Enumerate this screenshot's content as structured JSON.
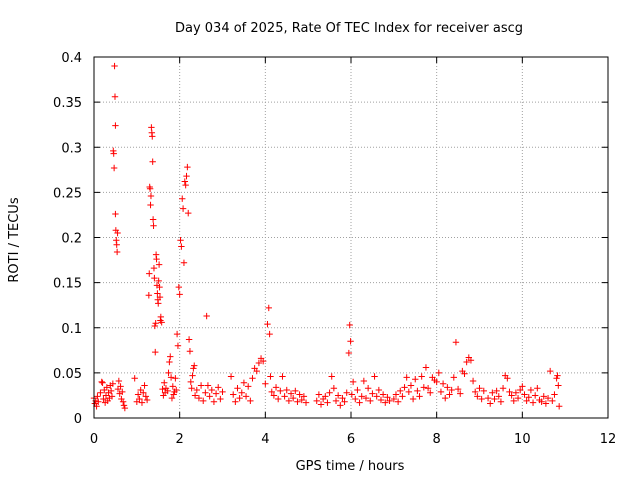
{
  "chart_data": {
    "type": "scatter",
    "title": "Day 034 of 2025, Rate Of TEC Index for receiver ascg",
    "xlabel": "GPS time / hours",
    "ylabel": "ROTI / TECUs",
    "xlim": [
      0,
      12
    ],
    "ylim": [
      0,
      0.4
    ],
    "x_ticks": [
      0,
      2,
      4,
      6,
      8,
      10,
      12
    ],
    "x_tick_labels": [
      "0",
      "2",
      "4",
      "6",
      "8",
      "10",
      "12"
    ],
    "y_ticks": [
      0,
      0.05,
      0.1,
      0.15,
      0.2,
      0.25,
      0.3,
      0.35,
      0.4
    ],
    "y_tick_labels": [
      "0",
      "0.05",
      "0.1",
      "0.15",
      "0.2",
      "0.25",
      "0.3",
      "0.35",
      "0.4"
    ],
    "grid": true,
    "marker": "+",
    "color": "#ff0000",
    "series": [
      {
        "name": "ROTI",
        "points": [
          [
            0.0,
            0.022
          ],
          [
            0.02,
            0.016
          ],
          [
            0.04,
            0.019
          ],
          [
            0.06,
            0.013
          ],
          [
            0.08,
            0.024
          ],
          [
            0.1,
            0.018
          ],
          [
            0.15,
            0.028
          ],
          [
            0.18,
            0.04
          ],
          [
            0.2,
            0.039
          ],
          [
            0.22,
            0.021
          ],
          [
            0.24,
            0.031
          ],
          [
            0.26,
            0.017
          ],
          [
            0.28,
            0.025
          ],
          [
            0.3,
            0.034
          ],
          [
            0.32,
            0.019
          ],
          [
            0.34,
            0.028
          ],
          [
            0.36,
            0.022
          ],
          [
            0.38,
            0.036
          ],
          [
            0.4,
            0.03
          ],
          [
            0.42,
            0.024
          ],
          [
            0.44,
            0.038
          ],
          [
            0.45,
            0.296
          ],
          [
            0.46,
            0.293
          ],
          [
            0.47,
            0.277
          ],
          [
            0.48,
            0.39
          ],
          [
            0.49,
            0.356
          ],
          [
            0.5,
            0.324
          ],
          [
            0.5,
            0.226
          ],
          [
            0.51,
            0.208
          ],
          [
            0.52,
            0.197
          ],
          [
            0.53,
            0.192
          ],
          [
            0.54,
            0.184
          ],
          [
            0.55,
            0.205
          ],
          [
            0.56,
            0.032
          ],
          [
            0.58,
            0.041
          ],
          [
            0.6,
            0.027
          ],
          [
            0.62,
            0.035
          ],
          [
            0.64,
            0.021
          ],
          [
            0.66,
            0.029
          ],
          [
            0.68,
            0.018
          ],
          [
            0.7,
            0.014
          ],
          [
            0.72,
            0.011
          ],
          [
            0.95,
            0.044
          ],
          [
            1.0,
            0.018
          ],
          [
            1.03,
            0.026
          ],
          [
            1.06,
            0.021
          ],
          [
            1.09,
            0.031
          ],
          [
            1.12,
            0.017
          ],
          [
            1.15,
            0.028
          ],
          [
            1.18,
            0.036
          ],
          [
            1.21,
            0.024
          ],
          [
            1.24,
            0.02
          ],
          [
            1.28,
            0.136
          ],
          [
            1.29,
            0.16
          ],
          [
            1.3,
            0.256
          ],
          [
            1.31,
            0.254
          ],
          [
            1.32,
            0.236
          ],
          [
            1.33,
            0.246
          ],
          [
            1.34,
            0.322
          ],
          [
            1.35,
            0.316
          ],
          [
            1.36,
            0.312
          ],
          [
            1.37,
            0.284
          ],
          [
            1.38,
            0.22
          ],
          [
            1.39,
            0.213
          ],
          [
            1.4,
            0.166
          ],
          [
            1.41,
            0.155
          ],
          [
            1.42,
            0.102
          ],
          [
            1.43,
            0.073
          ],
          [
            1.44,
            0.105
          ],
          [
            1.45,
            0.181
          ],
          [
            1.46,
            0.176
          ],
          [
            1.47,
            0.147
          ],
          [
            1.48,
            0.138
          ],
          [
            1.49,
            0.131
          ],
          [
            1.5,
            0.127
          ],
          [
            1.51,
            0.152
          ],
          [
            1.52,
            0.17
          ],
          [
            1.53,
            0.145
          ],
          [
            1.54,
            0.134
          ],
          [
            1.55,
            0.108
          ],
          [
            1.56,
            0.112
          ],
          [
            1.58,
            0.106
          ],
          [
            1.6,
            0.032
          ],
          [
            1.62,
            0.025
          ],
          [
            1.64,
            0.039
          ],
          [
            1.66,
            0.028
          ],
          [
            1.68,
            0.033
          ],
          [
            1.72,
            0.03
          ],
          [
            1.74,
            0.05
          ],
          [
            1.76,
            0.062
          ],
          [
            1.78,
            0.068
          ],
          [
            1.8,
            0.045
          ],
          [
            1.82,
            0.022
          ],
          [
            1.84,
            0.035
          ],
          [
            1.86,
            0.026
          ],
          [
            1.88,
            0.029
          ],
          [
            1.9,
            0.044
          ],
          [
            1.92,
            0.031
          ],
          [
            1.94,
            0.093
          ],
          [
            1.96,
            0.08
          ],
          [
            1.98,
            0.145
          ],
          [
            2.0,
            0.137
          ],
          [
            2.02,
            0.197
          ],
          [
            2.04,
            0.19
          ],
          [
            2.06,
            0.243
          ],
          [
            2.08,
            0.232
          ],
          [
            2.1,
            0.172
          ],
          [
            2.12,
            0.262
          ],
          [
            2.14,
            0.258
          ],
          [
            2.16,
            0.268
          ],
          [
            2.18,
            0.278
          ],
          [
            2.2,
            0.227
          ],
          [
            2.22,
            0.087
          ],
          [
            2.24,
            0.074
          ],
          [
            2.26,
            0.04
          ],
          [
            2.28,
            0.033
          ],
          [
            2.3,
            0.047
          ],
          [
            2.32,
            0.055
          ],
          [
            2.34,
            0.058
          ],
          [
            2.36,
            0.025
          ],
          [
            2.4,
            0.031
          ],
          [
            2.45,
            0.022
          ],
          [
            2.5,
            0.036
          ],
          [
            2.55,
            0.019
          ],
          [
            2.6,
            0.028
          ],
          [
            2.63,
            0.113
          ],
          [
            2.66,
            0.036
          ],
          [
            2.7,
            0.024
          ],
          [
            2.75,
            0.031
          ],
          [
            2.8,
            0.018
          ],
          [
            2.85,
            0.027
          ],
          [
            2.9,
            0.034
          ],
          [
            2.95,
            0.021
          ],
          [
            3.0,
            0.029
          ],
          [
            3.2,
            0.046
          ],
          [
            3.25,
            0.026
          ],
          [
            3.3,
            0.018
          ],
          [
            3.35,
            0.033
          ],
          [
            3.4,
            0.022
          ],
          [
            3.45,
            0.028
          ],
          [
            3.5,
            0.039
          ],
          [
            3.55,
            0.024
          ],
          [
            3.6,
            0.035
          ],
          [
            3.65,
            0.019
          ],
          [
            3.7,
            0.044
          ],
          [
            3.75,
            0.055
          ],
          [
            3.8,
            0.052
          ],
          [
            3.85,
            0.061
          ],
          [
            3.9,
            0.066
          ],
          [
            3.95,
            0.063
          ],
          [
            4.0,
            0.038
          ],
          [
            4.05,
            0.104
          ],
          [
            4.08,
            0.122
          ],
          [
            4.1,
            0.093
          ],
          [
            4.12,
            0.046
          ],
          [
            4.15,
            0.029
          ],
          [
            4.2,
            0.025
          ],
          [
            4.25,
            0.034
          ],
          [
            4.3,
            0.021
          ],
          [
            4.35,
            0.03
          ],
          [
            4.4,
            0.046
          ],
          [
            4.45,
            0.024
          ],
          [
            4.5,
            0.031
          ],
          [
            4.55,
            0.019
          ],
          [
            4.6,
            0.027
          ],
          [
            4.65,
            0.022
          ],
          [
            4.7,
            0.03
          ],
          [
            4.75,
            0.018
          ],
          [
            4.8,
            0.026
          ],
          [
            4.85,
            0.02
          ],
          [
            4.9,
            0.024
          ],
          [
            4.95,
            0.017
          ],
          [
            5.2,
            0.019
          ],
          [
            5.25,
            0.026
          ],
          [
            5.3,
            0.015
          ],
          [
            5.35,
            0.021
          ],
          [
            5.4,
            0.024
          ],
          [
            5.45,
            0.017
          ],
          [
            5.5,
            0.028
          ],
          [
            5.55,
            0.046
          ],
          [
            5.6,
            0.033
          ],
          [
            5.65,
            0.019
          ],
          [
            5.7,
            0.025
          ],
          [
            5.75,
            0.014
          ],
          [
            5.8,
            0.022
          ],
          [
            5.85,
            0.018
          ],
          [
            5.9,
            0.028
          ],
          [
            5.95,
            0.072
          ],
          [
            5.97,
            0.103
          ],
          [
            5.99,
            0.085
          ],
          [
            6.02,
            0.026
          ],
          [
            6.05,
            0.04
          ],
          [
            6.1,
            0.021
          ],
          [
            6.15,
            0.031
          ],
          [
            6.2,
            0.017
          ],
          [
            6.25,
            0.024
          ],
          [
            6.3,
            0.041
          ],
          [
            6.35,
            0.022
          ],
          [
            6.4,
            0.033
          ],
          [
            6.45,
            0.019
          ],
          [
            6.5,
            0.027
          ],
          [
            6.55,
            0.046
          ],
          [
            6.6,
            0.024
          ],
          [
            6.65,
            0.031
          ],
          [
            6.7,
            0.02
          ],
          [
            6.75,
            0.026
          ],
          [
            6.8,
            0.017
          ],
          [
            6.85,
            0.023
          ],
          [
            6.9,
            0.019
          ],
          [
            7.0,
            0.021
          ],
          [
            7.05,
            0.026
          ],
          [
            7.1,
            0.018
          ],
          [
            7.15,
            0.03
          ],
          [
            7.2,
            0.024
          ],
          [
            7.25,
            0.034
          ],
          [
            7.3,
            0.045
          ],
          [
            7.35,
            0.029
          ],
          [
            7.4,
            0.036
          ],
          [
            7.45,
            0.021
          ],
          [
            7.5,
            0.043
          ],
          [
            7.55,
            0.03
          ],
          [
            7.6,
            0.024
          ],
          [
            7.65,
            0.046
          ],
          [
            7.7,
            0.034
          ],
          [
            7.75,
            0.056
          ],
          [
            7.8,
            0.033
          ],
          [
            7.85,
            0.028
          ],
          [
            7.9,
            0.045
          ],
          [
            7.95,
            0.042
          ],
          [
            8.0,
            0.04
          ],
          [
            8.05,
            0.05
          ],
          [
            8.1,
            0.029
          ],
          [
            8.15,
            0.038
          ],
          [
            8.2,
            0.022
          ],
          [
            8.25,
            0.034
          ],
          [
            8.3,
            0.026
          ],
          [
            8.35,
            0.031
          ],
          [
            8.4,
            0.045
          ],
          [
            8.45,
            0.084
          ],
          [
            8.5,
            0.032
          ],
          [
            8.55,
            0.027
          ],
          [
            8.6,
            0.052
          ],
          [
            8.65,
            0.049
          ],
          [
            8.7,
            0.062
          ],
          [
            8.75,
            0.067
          ],
          [
            8.8,
            0.064
          ],
          [
            8.85,
            0.041
          ],
          [
            8.9,
            0.029
          ],
          [
            8.95,
            0.024
          ],
          [
            9.0,
            0.033
          ],
          [
            9.05,
            0.021
          ],
          [
            9.1,
            0.03
          ],
          [
            9.2,
            0.022
          ],
          [
            9.25,
            0.016
          ],
          [
            9.3,
            0.028
          ],
          [
            9.35,
            0.021
          ],
          [
            9.4,
            0.03
          ],
          [
            9.45,
            0.024
          ],
          [
            9.5,
            0.018
          ],
          [
            9.55,
            0.033
          ],
          [
            9.6,
            0.047
          ],
          [
            9.65,
            0.044
          ],
          [
            9.7,
            0.029
          ],
          [
            9.75,
            0.025
          ],
          [
            9.8,
            0.019
          ],
          [
            9.85,
            0.028
          ],
          [
            9.9,
            0.022
          ],
          [
            9.95,
            0.031
          ],
          [
            10.0,
            0.035
          ],
          [
            10.05,
            0.026
          ],
          [
            10.1,
            0.019
          ],
          [
            10.15,
            0.023
          ],
          [
            10.2,
            0.031
          ],
          [
            10.25,
            0.017
          ],
          [
            10.3,
            0.025
          ],
          [
            10.35,
            0.033
          ],
          [
            10.4,
            0.02
          ],
          [
            10.45,
            0.018
          ],
          [
            10.5,
            0.024
          ],
          [
            10.55,
            0.016
          ],
          [
            10.6,
            0.022
          ],
          [
            10.65,
            0.052
          ],
          [
            10.7,
            0.019
          ],
          [
            10.75,
            0.026
          ],
          [
            10.8,
            0.044
          ],
          [
            10.82,
            0.047
          ],
          [
            10.84,
            0.036
          ],
          [
            10.86,
            0.013
          ]
        ]
      }
    ]
  }
}
